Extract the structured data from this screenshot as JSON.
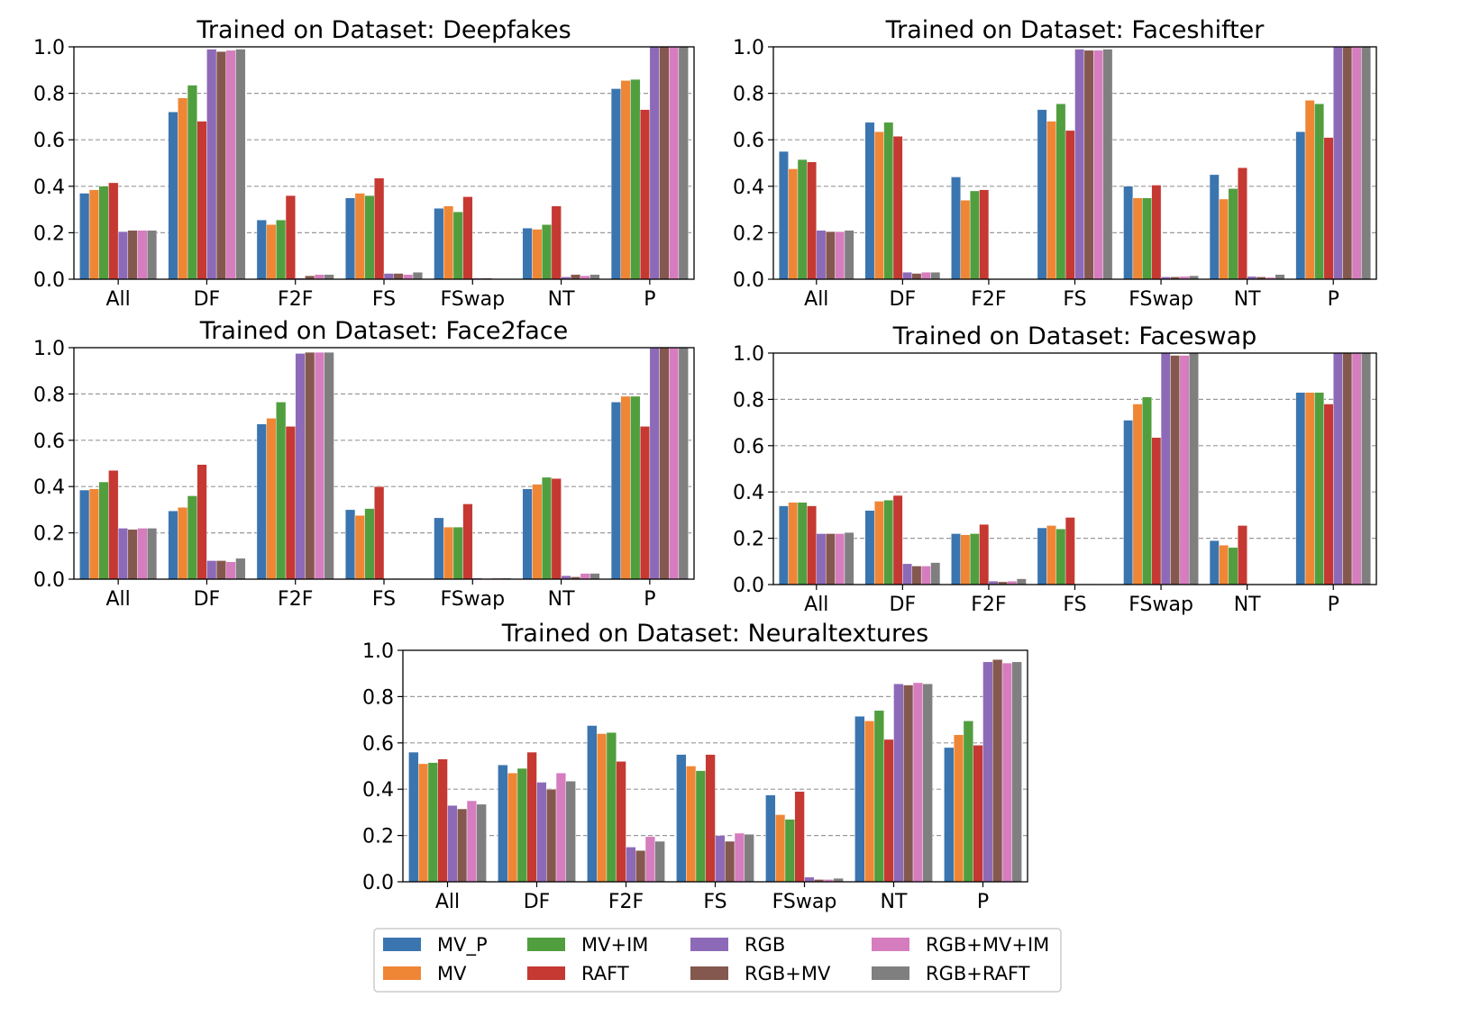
{
  "chart_data": {
    "type": "bar",
    "categories": [
      "All",
      "DF",
      "F2F",
      "FS",
      "FSwap",
      "NT",
      "P"
    ],
    "series_names": [
      "MV_P",
      "MV",
      "MV+IM",
      "RAFT",
      "RGB",
      "RGB+MV",
      "RGB+MV+IM",
      "RGB+RAFT"
    ],
    "colors": [
      "#3a75af",
      "#ef8636",
      "#519e3e",
      "#c53932",
      "#8d6ab8",
      "#84584e",
      "#d57dbe",
      "#7f7f7f"
    ],
    "ylim": [
      0,
      1.0
    ],
    "yticks": [
      "0.0",
      "0.2",
      "0.4",
      "0.6",
      "0.8",
      "1.0"
    ],
    "grid": "y-dashed",
    "legend_placement": "bottom-center",
    "subplots": [
      {
        "title": "Trained on Dataset: Deepfakes",
        "values": [
          [
            0.37,
            0.385,
            0.4,
            0.415,
            0.205,
            0.21,
            0.21,
            0.21
          ],
          [
            0.72,
            0.78,
            0.835,
            0.68,
            0.99,
            0.98,
            0.985,
            0.99
          ],
          [
            0.255,
            0.235,
            0.255,
            0.36,
            0.005,
            0.015,
            0.02,
            0.02
          ],
          [
            0.35,
            0.37,
            0.36,
            0.435,
            0.025,
            0.025,
            0.02,
            0.03
          ],
          [
            0.305,
            0.315,
            0.29,
            0.355,
            0.005,
            0.005,
            0.002,
            0.002
          ],
          [
            0.22,
            0.215,
            0.235,
            0.315,
            0.01,
            0.02,
            0.015,
            0.02
          ],
          [
            0.82,
            0.855,
            0.86,
            0.73,
            1.0,
            1.0,
            1.0,
            1.0
          ]
        ]
      },
      {
        "title": "Trained on Dataset: Faceshifter",
        "values": [
          [
            0.55,
            0.475,
            0.515,
            0.505,
            0.21,
            0.205,
            0.205,
            0.21
          ],
          [
            0.675,
            0.635,
            0.675,
            0.615,
            0.03,
            0.025,
            0.03,
            0.03
          ],
          [
            0.44,
            0.34,
            0.38,
            0.385,
            0.003,
            0.002,
            0.002,
            0.002
          ],
          [
            0.73,
            0.68,
            0.755,
            0.64,
            0.99,
            0.985,
            0.985,
            0.99
          ],
          [
            0.4,
            0.35,
            0.35,
            0.405,
            0.01,
            0.01,
            0.012,
            0.015
          ],
          [
            0.45,
            0.345,
            0.39,
            0.48,
            0.012,
            0.01,
            0.008,
            0.02
          ],
          [
            0.635,
            0.77,
            0.755,
            0.61,
            1.0,
            1.0,
            1.0,
            1.0
          ]
        ]
      },
      {
        "title": "Trained on Dataset: Face2face",
        "values": [
          [
            0.385,
            0.39,
            0.42,
            0.47,
            0.22,
            0.215,
            0.22,
            0.22
          ],
          [
            0.295,
            0.31,
            0.36,
            0.495,
            0.08,
            0.08,
            0.075,
            0.09
          ],
          [
            0.67,
            0.695,
            0.765,
            0.66,
            0.975,
            0.98,
            0.98,
            0.98
          ],
          [
            0.3,
            0.275,
            0.305,
            0.4,
            0.003,
            0.003,
            0.002,
            0.002
          ],
          [
            0.265,
            0.225,
            0.225,
            0.325,
            0.005,
            0.003,
            0.005,
            0.005
          ],
          [
            0.39,
            0.41,
            0.44,
            0.435,
            0.015,
            0.01,
            0.025,
            0.025
          ],
          [
            0.765,
            0.79,
            0.79,
            0.66,
            1.0,
            1.0,
            1.0,
            1.0
          ]
        ]
      },
      {
        "title": "Trained on Dataset: Faceswap",
        "values": [
          [
            0.34,
            0.355,
            0.355,
            0.34,
            0.22,
            0.22,
            0.22,
            0.225
          ],
          [
            0.32,
            0.36,
            0.365,
            0.385,
            0.09,
            0.08,
            0.08,
            0.095
          ],
          [
            0.22,
            0.215,
            0.22,
            0.26,
            0.015,
            0.012,
            0.015,
            0.025
          ],
          [
            0.245,
            0.255,
            0.24,
            0.29,
            0.003,
            0.003,
            0.002,
            0.002
          ],
          [
            0.71,
            0.78,
            0.81,
            0.635,
            1.0,
            0.99,
            0.99,
            1.0
          ],
          [
            0.19,
            0.17,
            0.16,
            0.255,
            0.003,
            0.002,
            0.002,
            0.002
          ],
          [
            0.83,
            0.83,
            0.83,
            0.78,
            1.0,
            1.0,
            1.0,
            1.0
          ]
        ]
      },
      {
        "title": "Trained on Dataset: Neuraltextures",
        "values": [
          [
            0.56,
            0.51,
            0.515,
            0.53,
            0.33,
            0.315,
            0.35,
            0.335
          ],
          [
            0.505,
            0.47,
            0.49,
            0.56,
            0.43,
            0.4,
            0.47,
            0.435
          ],
          [
            0.675,
            0.64,
            0.645,
            0.52,
            0.15,
            0.135,
            0.195,
            0.175
          ],
          [
            0.55,
            0.5,
            0.48,
            0.55,
            0.2,
            0.175,
            0.21,
            0.205
          ],
          [
            0.375,
            0.29,
            0.27,
            0.39,
            0.02,
            0.01,
            0.01,
            0.015
          ],
          [
            0.715,
            0.695,
            0.74,
            0.615,
            0.855,
            0.85,
            0.86,
            0.855
          ],
          [
            0.58,
            0.635,
            0.695,
            0.59,
            0.95,
            0.96,
            0.945,
            0.95
          ]
        ]
      }
    ]
  }
}
